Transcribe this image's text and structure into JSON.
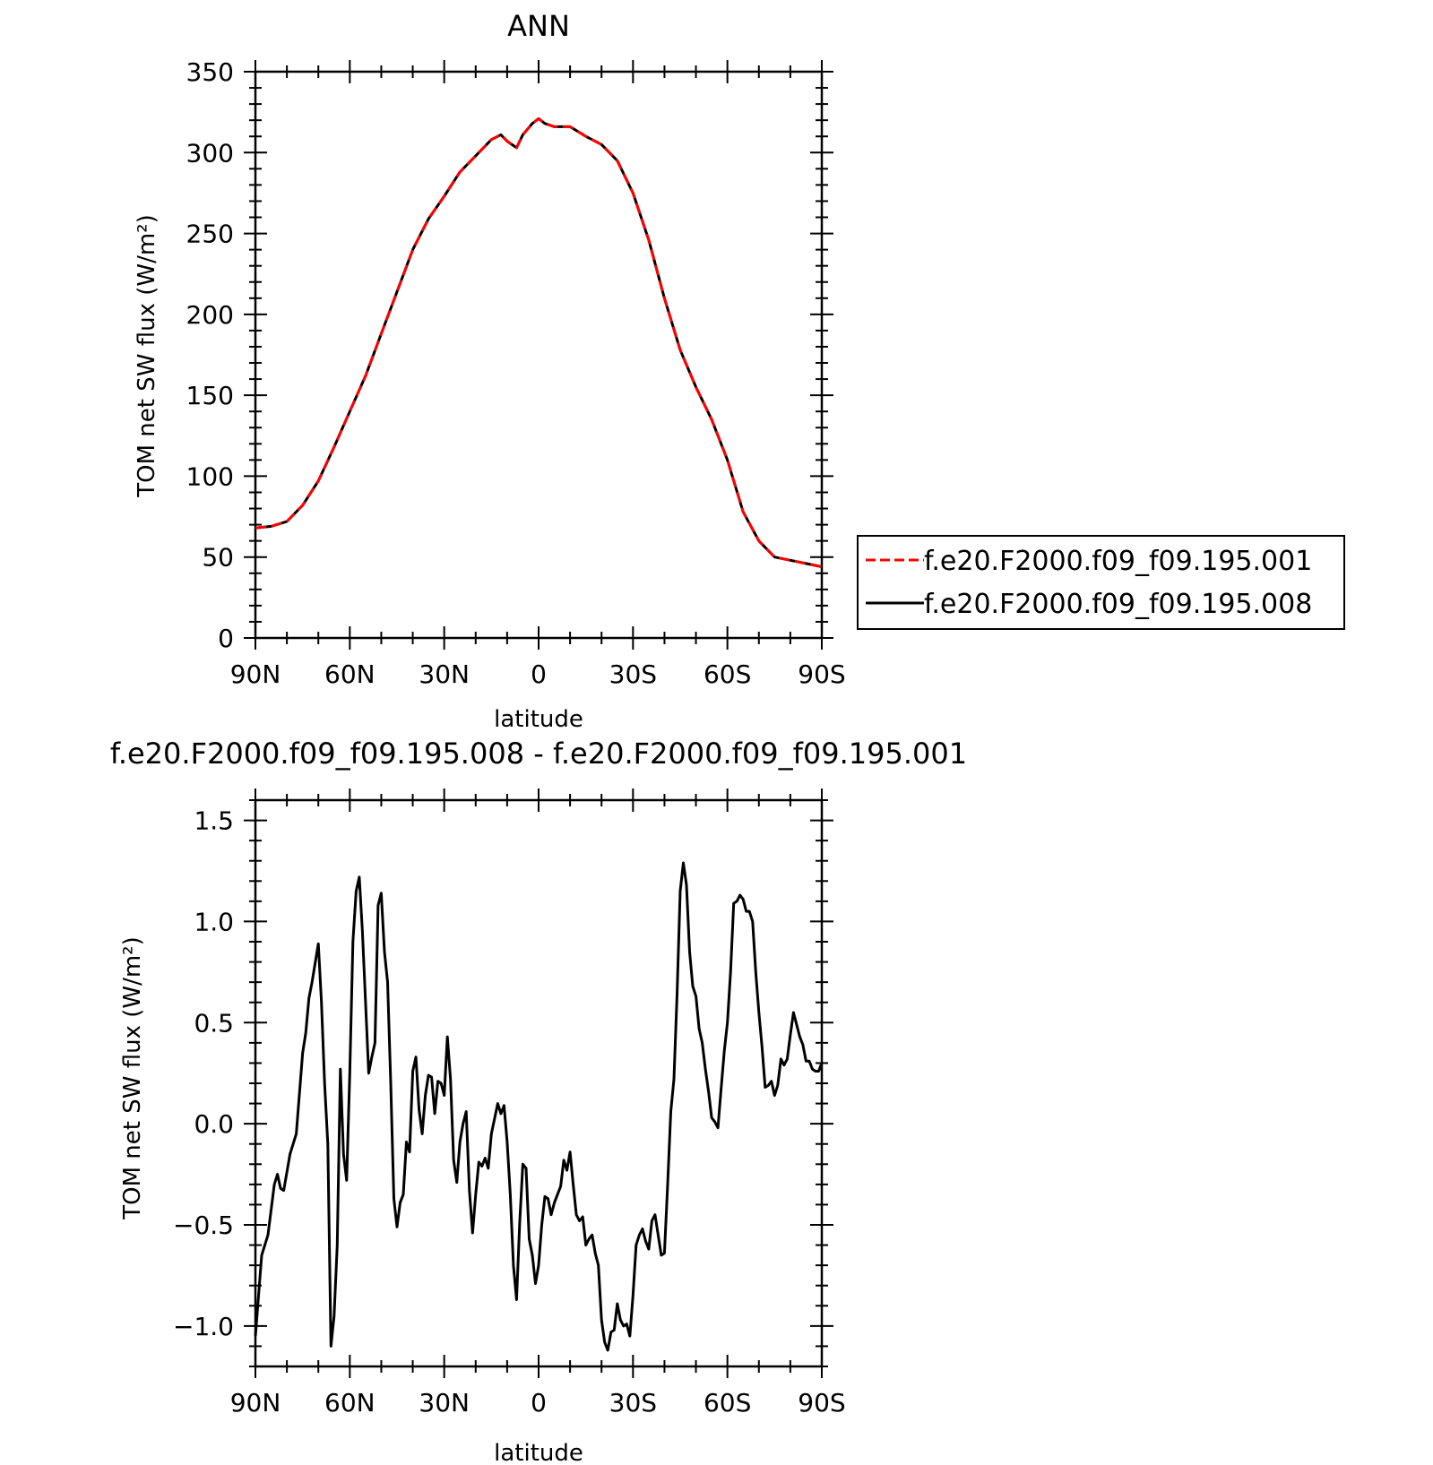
{
  "chart_data": [
    {
      "type": "line",
      "title": "ANN",
      "xlabel": "latitude",
      "ylabel": "TOM net SW flux (W/m²)",
      "x_tick_labels": [
        "90N",
        "60N",
        "30N",
        "0",
        "30S",
        "60S",
        "90S"
      ],
      "x_tick_values": [
        90,
        60,
        30,
        0,
        -30,
        -60,
        -90
      ],
      "xlim": [
        90,
        -90
      ],
      "ylim": [
        0,
        350
      ],
      "y_ticks": [
        0,
        50,
        100,
        150,
        200,
        250,
        300,
        350
      ],
      "grid": false,
      "legend_position": "right",
      "x": [
        90,
        85,
        80,
        75,
        70,
        65,
        60,
        55,
        50,
        45,
        40,
        35,
        30,
        25,
        20,
        15,
        12,
        10,
        7,
        5,
        2,
        0,
        -2,
        -5,
        -10,
        -15,
        -20,
        -25,
        -30,
        -35,
        -40,
        -45,
        -50,
        -55,
        -60,
        -65,
        -70,
        -75,
        -80,
        -85,
        -90
      ],
      "series": [
        {
          "name": "f.e20.F2000.f09_f09.195.001",
          "color": "#ff0000",
          "dash": "dashed",
          "values": [
            68,
            69,
            72,
            82,
            97,
            118,
            140,
            162,
            188,
            214,
            240,
            259,
            273,
            288,
            298,
            308,
            311,
            307,
            303,
            311,
            318,
            321,
            318,
            316,
            316,
            310,
            305,
            295,
            275,
            246,
            210,
            178,
            155,
            135,
            110,
            78,
            60,
            50,
            48,
            46,
            44
          ]
        },
        {
          "name": "f.e20.F2000.f09_f09.195.008",
          "color": "#000000",
          "dash": "solid",
          "values": [
            68,
            69,
            72,
            82,
            97,
            118,
            140,
            162,
            188,
            214,
            240,
            259,
            273,
            288,
            298,
            308,
            311,
            307,
            303,
            311,
            318,
            321,
            318,
            316,
            316,
            310,
            305,
            295,
            275,
            246,
            210,
            178,
            155,
            135,
            110,
            78,
            60,
            50,
            48,
            46,
            44
          ]
        }
      ]
    },
    {
      "type": "line",
      "title": "f.e20.F2000.f09_f09.195.008 - f.e20.F2000.f09_f09.195.001",
      "xlabel": "latitude",
      "ylabel": "TOM net SW flux (W/m²)",
      "x_tick_labels": [
        "90N",
        "60N",
        "30N",
        "0",
        "30S",
        "60S",
        "90S"
      ],
      "x_tick_values": [
        90,
        60,
        30,
        0,
        -30,
        -60,
        -90
      ],
      "xlim": [
        90,
        -90
      ],
      "ylim": [
        -1.2,
        1.6
      ],
      "y_ticks": [
        -1.0,
        -0.5,
        0.0,
        0.5,
        1.0,
        1.5
      ],
      "y_tick_labels": [
        "−1.0",
        "−0.5",
        "0.0",
        "0.5",
        "1.0",
        "1.5"
      ],
      "grid": false,
      "x": [
        90,
        88,
        86,
        84,
        83,
        82,
        81,
        79,
        77,
        75,
        74,
        73,
        72,
        70,
        69,
        68,
        67,
        66,
        65,
        64,
        63,
        62,
        61,
        60,
        59,
        58,
        57,
        56,
        55,
        54,
        53,
        52,
        51,
        50,
        49,
        48,
        47,
        46,
        45,
        44,
        43,
        42,
        41,
        40,
        39,
        38,
        37,
        36,
        35,
        34,
        33,
        32,
        31,
        30,
        29,
        28,
        27,
        26,
        25,
        24,
        23,
        22,
        21,
        20,
        19,
        18,
        17,
        16,
        15,
        13,
        12,
        11,
        10,
        9,
        8,
        7,
        6,
        5,
        4,
        3,
        2,
        1,
        0,
        -1,
        -2,
        -3,
        -4,
        -5,
        -6,
        -7,
        -8,
        -9,
        -10,
        -11,
        -12,
        -13,
        -14,
        -15,
        -16,
        -17,
        -18,
        -19,
        -20,
        -21,
        -22,
        -23,
        -24,
        -25,
        -26,
        -27,
        -28,
        -29,
        -30,
        -31,
        -32,
        -33,
        -34,
        -35,
        -36,
        -37,
        -38,
        -39,
        -40,
        -41,
        -42,
        -43,
        -44,
        -45,
        -46,
        -47,
        -48,
        -49,
        -50,
        -51,
        -52,
        -53,
        -54,
        -55,
        -56,
        -57,
        -58,
        -59,
        -60,
        -61,
        -62,
        -63,
        -64,
        -65,
        -66,
        -67,
        -68,
        -69,
        -70,
        -71,
        -72,
        -73,
        -74,
        -75,
        -76,
        -77,
        -78,
        -79,
        -80,
        -81,
        -82,
        -83,
        -84,
        -85,
        -86,
        -87,
        -88,
        -89,
        -90
      ],
      "series": [
        {
          "color": "#000000",
          "values": [
            -1.05,
            -0.65,
            -0.55,
            -0.3,
            -0.25,
            -0.32,
            -0.33,
            -0.15,
            -0.05,
            0.35,
            0.45,
            0.62,
            0.7,
            0.89,
            0.6,
            0.2,
            -0.1,
            -1.1,
            -0.95,
            -0.6,
            0.27,
            -0.15,
            -0.28,
            0.25,
            0.9,
            1.15,
            1.22,
            0.95,
            0.6,
            0.25,
            0.33,
            0.4,
            1.08,
            1.14,
            0.85,
            0.7,
            0.2,
            -0.37,
            -0.51,
            -0.39,
            -0.35,
            -0.09,
            -0.14,
            0.26,
            0.33,
            0.07,
            -0.05,
            0.14,
            0.24,
            0.23,
            0.05,
            0.21,
            0.2,
            0.14,
            0.43,
            0.22,
            -0.18,
            -0.29,
            -0.09,
            0.0,
            0.06,
            -0.33,
            -0.54,
            -0.35,
            -0.19,
            -0.21,
            -0.17,
            -0.22,
            -0.05,
            0.1,
            0.05,
            0.09,
            -0.09,
            -0.35,
            -0.7,
            -0.87,
            -0.49,
            -0.2,
            -0.22,
            -0.57,
            -0.65,
            -0.79,
            -0.7,
            -0.5,
            -0.36,
            -0.37,
            -0.45,
            -0.39,
            -0.35,
            -0.31,
            -0.18,
            -0.23,
            -0.14,
            -0.3,
            -0.45,
            -0.48,
            -0.46,
            -0.6,
            -0.57,
            -0.55,
            -0.64,
            -0.7,
            -0.97,
            -1.08,
            -1.12,
            -1.03,
            -1.02,
            -0.89,
            -0.97,
            -1.0,
            -0.99,
            -1.05,
            -0.85,
            -0.6,
            -0.55,
            -0.52,
            -0.58,
            -0.62,
            -0.48,
            -0.45,
            -0.55,
            -0.65,
            -0.64,
            -0.3,
            0.06,
            0.22,
            0.64,
            1.15,
            1.29,
            1.18,
            0.85,
            0.68,
            0.63,
            0.47,
            0.4,
            0.27,
            0.16,
            0.03,
            0.01,
            -0.02,
            0.17,
            0.36,
            0.5,
            0.75,
            1.09,
            1.1,
            1.13,
            1.11,
            1.05,
            1.05,
            1.0,
            0.75,
            0.55,
            0.38,
            0.18,
            0.19,
            0.21,
            0.14,
            0.19,
            0.32,
            0.29,
            0.32,
            0.44,
            0.55,
            0.49,
            0.43,
            0.39,
            0.31,
            0.31,
            0.27,
            0.26,
            0.26,
            0.3
          ]
        }
      ]
    }
  ]
}
